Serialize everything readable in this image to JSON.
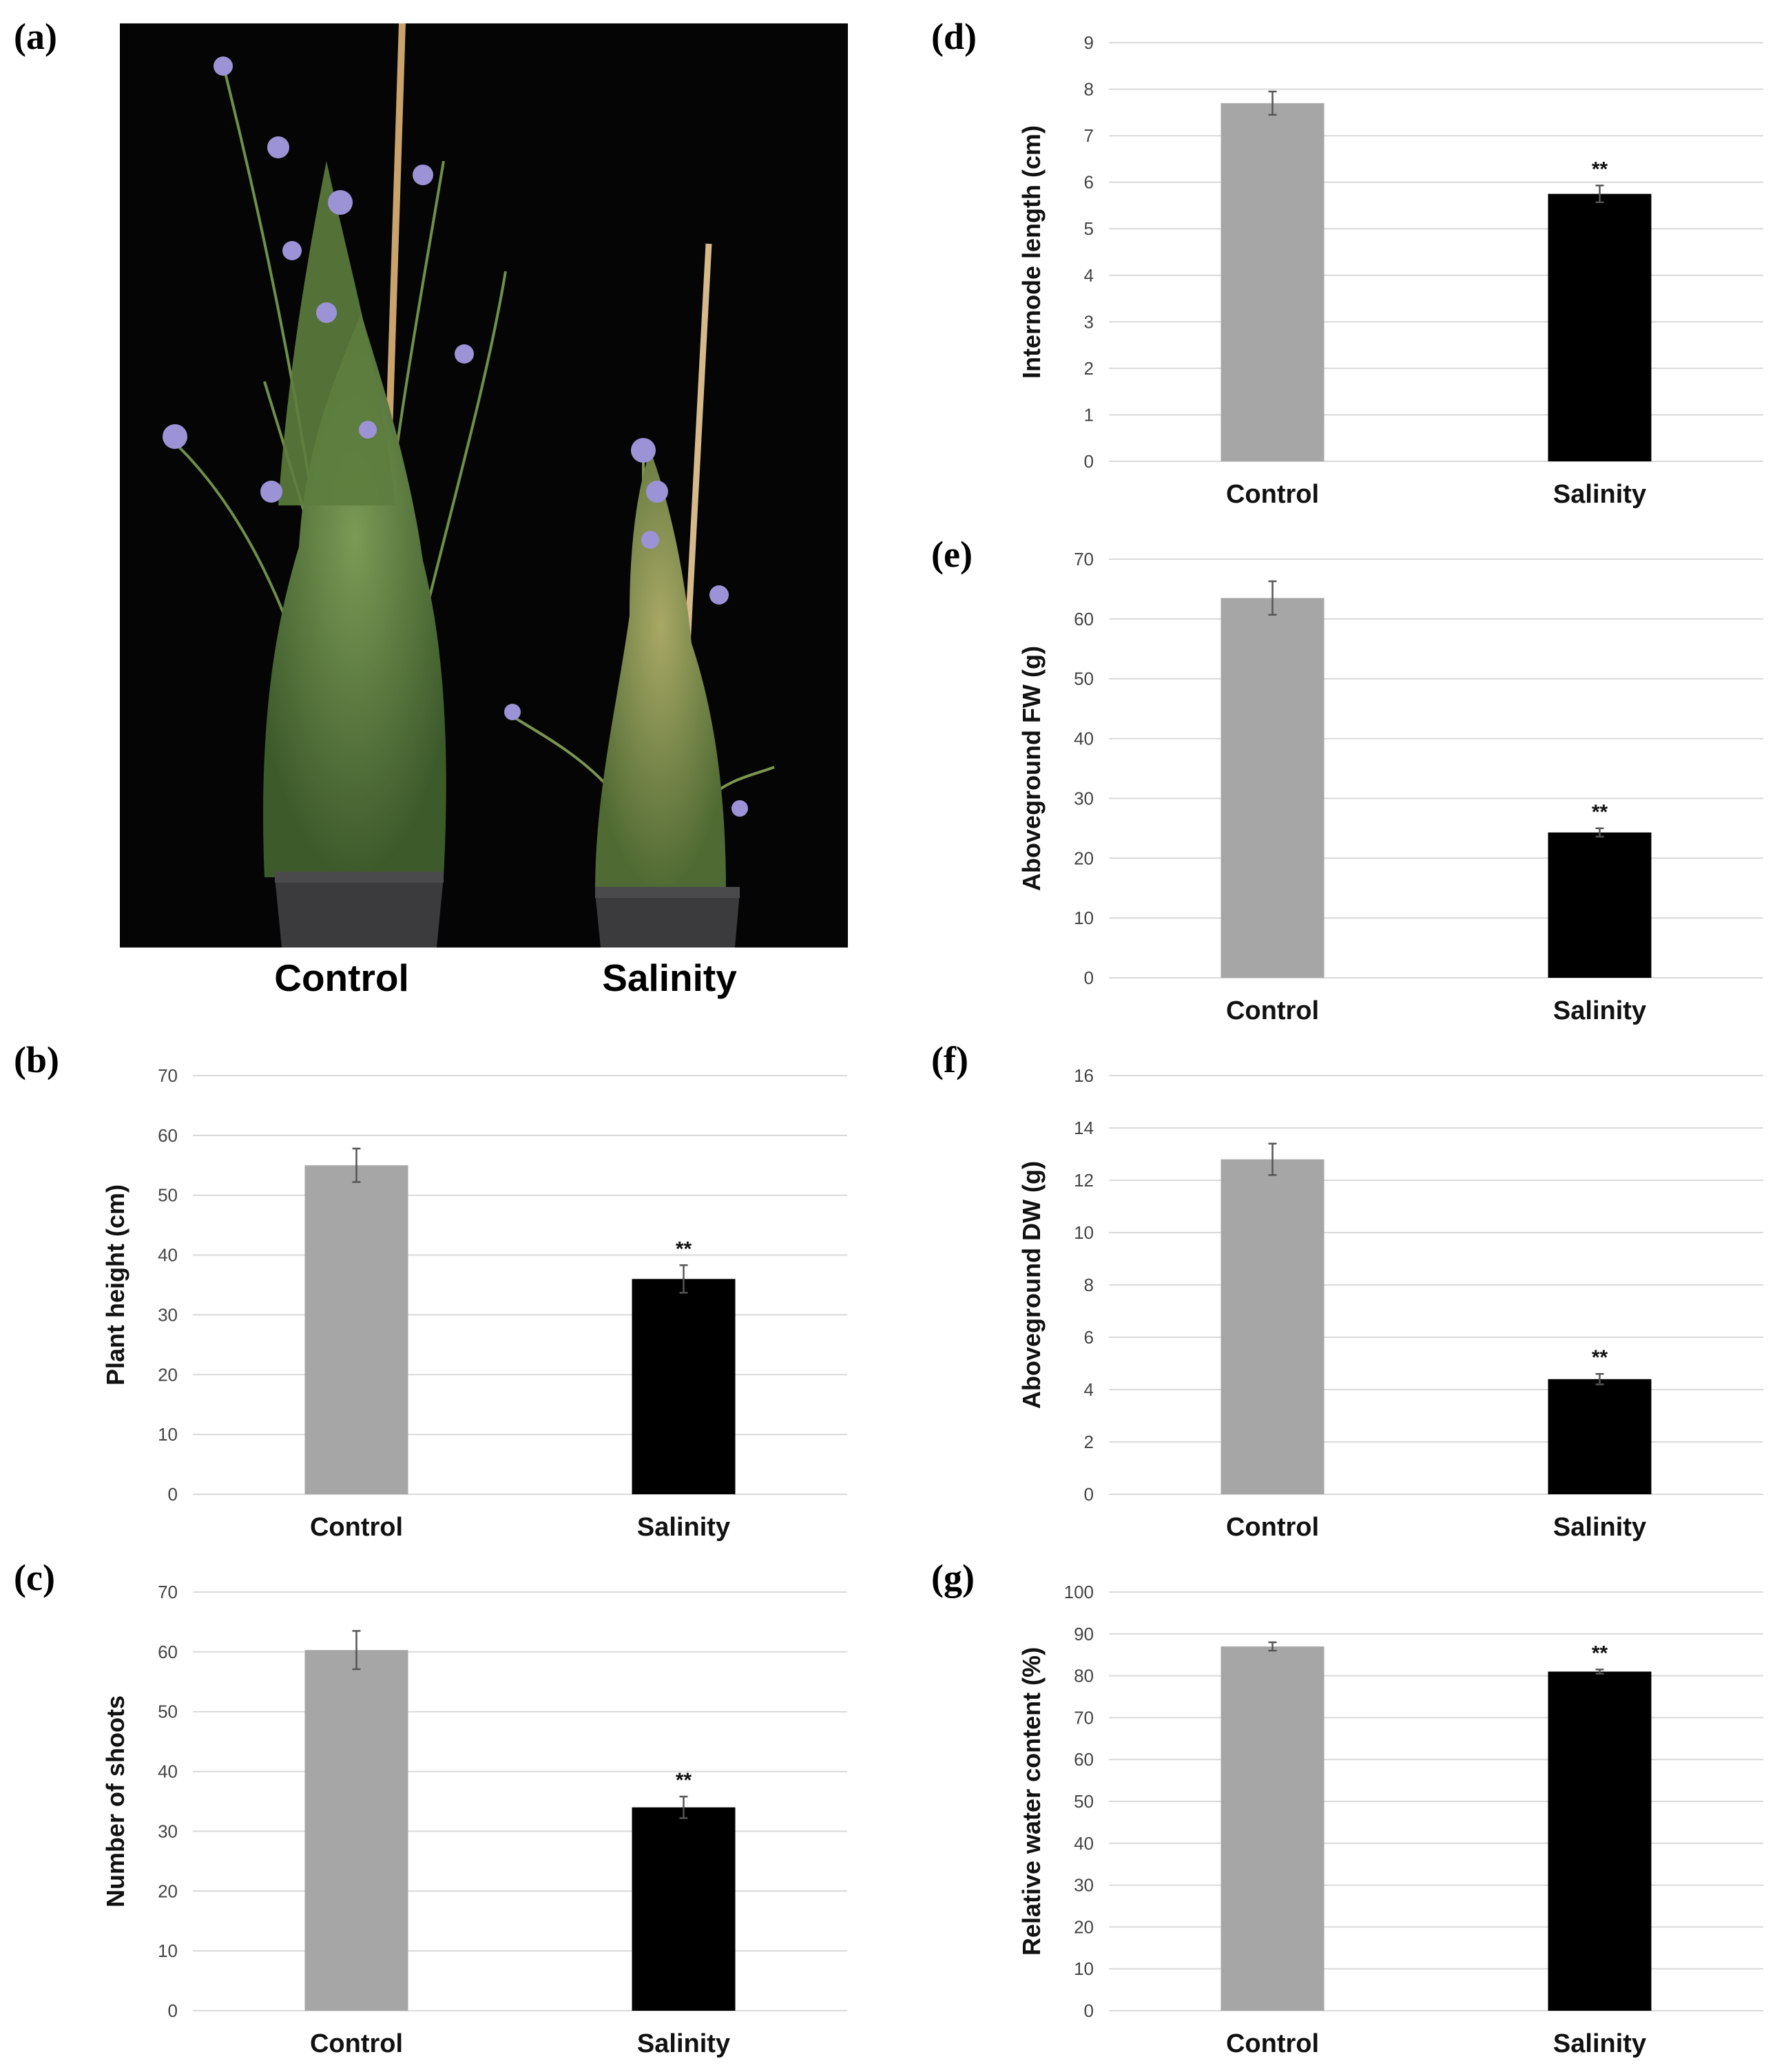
{
  "figure": {
    "panel_a": {
      "letter": "(a)",
      "captions": [
        "Control",
        "Salinity"
      ]
    }
  },
  "chart_data": [
    {
      "id": "b",
      "letter": "(b)",
      "type": "bar",
      "categories": [
        "Control",
        "Salinity"
      ],
      "values": [
        55,
        36
      ],
      "errors": [
        2.8,
        2.3
      ],
      "significance": [
        "",
        "**"
      ],
      "ylabel": "Plant height (cm)",
      "ylim": [
        0,
        70
      ],
      "ystep": 10,
      "bar_colors": [
        "#a6a6a6",
        "#000000"
      ],
      "grid": true
    },
    {
      "id": "c",
      "letter": "(c)",
      "type": "bar",
      "categories": [
        "Control",
        "Salinity"
      ],
      "values": [
        60.3,
        34
      ],
      "errors": [
        3.2,
        1.8
      ],
      "significance": [
        "",
        "**"
      ],
      "ylabel": "Number of shoots",
      "ylim": [
        0,
        70
      ],
      "ystep": 10,
      "bar_colors": [
        "#a6a6a6",
        "#000000"
      ],
      "grid": true
    },
    {
      "id": "d",
      "letter": "(d)",
      "type": "bar",
      "categories": [
        "Control",
        "Salinity"
      ],
      "values": [
        7.7,
        5.75
      ],
      "errors": [
        0.25,
        0.18
      ],
      "significance": [
        "",
        "**"
      ],
      "ylabel": "Internode length (cm)",
      "ylim": [
        0,
        9
      ],
      "ystep": 1,
      "bar_colors": [
        "#a6a6a6",
        "#000000"
      ],
      "grid": true
    },
    {
      "id": "e",
      "letter": "(e)",
      "type": "bar",
      "categories": [
        "Control",
        "Salinity"
      ],
      "values": [
        63.5,
        24.3
      ],
      "errors": [
        2.8,
        0.7
      ],
      "significance": [
        "",
        "**"
      ],
      "ylabel": "Aboveground FW (g)",
      "ylim": [
        0,
        70
      ],
      "ystep": 10,
      "bar_colors": [
        "#a6a6a6",
        "#000000"
      ],
      "grid": true
    },
    {
      "id": "f",
      "letter": "(f)",
      "type": "bar",
      "categories": [
        "Control",
        "Salinity"
      ],
      "values": [
        12.8,
        4.4
      ],
      "errors": [
        0.6,
        0.2
      ],
      "significance": [
        "",
        "**"
      ],
      "ylabel": "Aboveground DW (g)",
      "ylim": [
        0,
        16
      ],
      "ystep": 2,
      "bar_colors": [
        "#a6a6a6",
        "#000000"
      ],
      "grid": true
    },
    {
      "id": "g",
      "letter": "(g)",
      "type": "bar",
      "categories": [
        "Control",
        "Salinity"
      ],
      "values": [
        87,
        81
      ],
      "errors": [
        1.0,
        0.5
      ],
      "significance": [
        "",
        "**"
      ],
      "ylabel": "Relative water content (%)",
      "ylim": [
        0,
        100
      ],
      "ystep": 10,
      "bar_colors": [
        "#a6a6a6",
        "#000000"
      ],
      "grid": true
    }
  ]
}
